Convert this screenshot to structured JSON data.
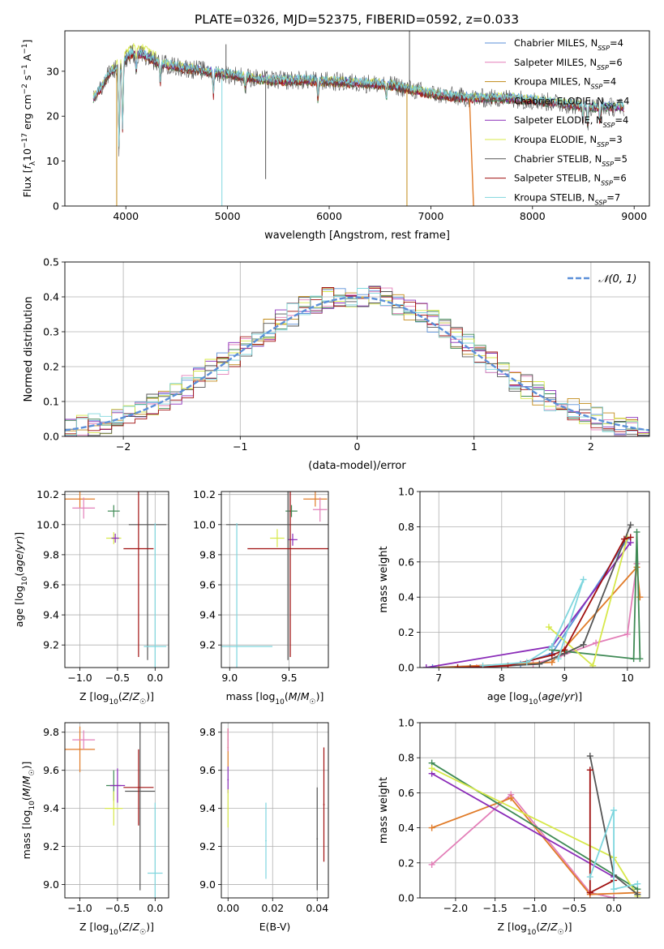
{
  "figure_title": "PLATE=0326, MJD=52375, FIBERID=0592, z=0.033",
  "colors": {
    "chabrier_miles": "#5b8fd8",
    "salpeter_miles": "#e37fb8",
    "kroupa_miles": "#c18a18",
    "chabrier_elodie": "#3f8a55",
    "salpeter_elodie": "#8a2bb8",
    "kroupa_elodie": "#d7e84a",
    "chabrier_stelib": "#555555",
    "salpeter_stelib": "#a01010",
    "kroupa_stelib": "#7fd6de",
    "orange": "#e07b28",
    "grey_lw": "#666666",
    "normal": "#5b8fd8"
  },
  "chart_data": [
    {
      "id": "spectrum",
      "type": "line",
      "xlabel": "wavelength [Angstrom, rest frame]",
      "ylabel": "Flux [f_λ 10^-17 erg cm^-2 s^-1 A^-1]",
      "xlim": [
        3400,
        9150
      ],
      "ylim": [
        0,
        39
      ],
      "xticks": [
        4000,
        5000,
        6000,
        7000,
        8000,
        9000
      ],
      "yticks": [
        0,
        10,
        20,
        30
      ],
      "legend_position": "top-right",
      "legend": [
        {
          "label": "Chabrier MILES, N",
          "sub": "SSP",
          "value": "=4",
          "color_key": "chabrier_miles"
        },
        {
          "label": "Salpeter MILES, N",
          "sub": "SSP",
          "value": "=6",
          "color_key": "salpeter_miles"
        },
        {
          "label": "Kroupa MILES, N",
          "sub": "SSP",
          "value": "=4",
          "color_key": "kroupa_miles"
        },
        {
          "label": "Chabrier ELODIE, N",
          "sub": "SSP",
          "value": "=4",
          "color_key": "chabrier_elodie"
        },
        {
          "label": "Salpeter ELODIE, N",
          "sub": "SSP",
          "value": "=4",
          "color_key": "salpeter_elodie"
        },
        {
          "label": "Kroupa ELODIE, N",
          "sub": "SSP",
          "value": "=3",
          "color_key": "kroupa_elodie"
        },
        {
          "label": "Chabrier STELIB, N",
          "sub": "SSP",
          "value": "=5",
          "color_key": "chabrier_stelib"
        },
        {
          "label": "Salpeter STELIB, N",
          "sub": "SSP",
          "value": "=6",
          "color_key": "salpeter_stelib"
        },
        {
          "label": "Kroupa STELIB, N",
          "sub": "SSP",
          "value": "=7",
          "color_key": "kroupa_stelib"
        }
      ],
      "continuum": {
        "x": [
          3680,
          3750,
          3850,
          3950,
          4050,
          4150,
          4300,
          4500,
          4800,
          5100,
          5400,
          5800,
          6200,
          6600,
          7000,
          7400,
          7800,
          8200,
          8600,
          8900
        ],
        "y": [
          24,
          26,
          30,
          31,
          34,
          34,
          32,
          31,
          30,
          29,
          28,
          28,
          27.5,
          27,
          25,
          24,
          24,
          23,
          22,
          22
        ]
      },
      "absorption_features": [
        {
          "x": 3933,
          "depth": 18
        },
        {
          "x": 3968,
          "depth": 14
        },
        {
          "x": 4102,
          "depth": 4
        },
        {
          "x": 4340,
          "depth": 4
        },
        {
          "x": 4861,
          "depth": 5
        },
        {
          "x": 5175,
          "depth": 3
        },
        {
          "x": 5890,
          "depth": 4
        },
        {
          "x": 6563,
          "depth": 3
        },
        {
          "x": 8498,
          "depth": 3
        },
        {
          "x": 8542,
          "depth": 4
        },
        {
          "x": 8662,
          "depth": 3
        }
      ],
      "spikes": [
        {
          "x": 3910,
          "y": 0,
          "color_key": "kroupa_miles"
        },
        {
          "x": 4945,
          "y": 0,
          "color_key": "kroupa_stelib"
        },
        {
          "x": 5375,
          "y": 6,
          "color_key": "chabrier_stelib"
        },
        {
          "x": 6765,
          "y": 0,
          "color_key": "kroupa_miles"
        },
        {
          "x": 6790,
          "y": 39,
          "color_key": "chabrier_stelib"
        },
        {
          "x": 4985,
          "y": 36,
          "color_key": "chabrier_stelib"
        }
      ],
      "red_cutoff": {
        "x": 7410,
        "color_key": "orange"
      }
    },
    {
      "id": "residuals",
      "type": "histogram",
      "xlabel": "(data-model)/error",
      "ylabel": "Normed distribution",
      "xlim": [
        -2.5,
        2.5
      ],
      "ylim": [
        0,
        0.5
      ],
      "xticks": [
        -2,
        -1,
        0,
        1,
        2
      ],
      "yticks": [
        0.0,
        0.1,
        0.2,
        0.3,
        0.4,
        0.5
      ],
      "bin_width": 0.1,
      "legend_position": "top-right",
      "legend_label": "𝒩(0, 1)",
      "normal": {
        "mu": 0,
        "sigma": 1
      }
    },
    {
      "id": "age_vs_z",
      "type": "errorbar",
      "xlabel": "Z [log10(Z/Z☉)]",
      "ylabel": "age [log10(age/yr)]",
      "xlim": [
        -1.2,
        0.18
      ],
      "ylim": [
        9.05,
        10.22
      ],
      "xticks": [
        -1.0,
        -0.5,
        0.0
      ],
      "yticks": [
        9.2,
        9.4,
        9.6,
        9.8,
        10.0,
        10.2
      ],
      "points": [
        {
          "x": -1.0,
          "y": 10.17,
          "xerr": 0.2,
          "yerr": 0.06,
          "color_key": "orange"
        },
        {
          "x": -0.95,
          "y": 10.11,
          "xerr": 0.15,
          "yerr": 0.07,
          "color_key": "salpeter_miles"
        },
        {
          "x": -0.55,
          "y": 10.09,
          "xerr": 0.08,
          "yerr": 0.04,
          "color_key": "chabrier_elodie"
        },
        {
          "x": -0.55,
          "y": 9.91,
          "xerr": 0.1,
          "yerr": 0.04,
          "color_key": "kroupa_elodie"
        },
        {
          "x": -0.53,
          "y": 9.91,
          "xerr": 0.05,
          "yerr": 0.03,
          "color_key": "salpeter_elodie"
        },
        {
          "x": -0.1,
          "y": 10.0,
          "xerr": 0.25,
          "yerr": 0.9,
          "color_key": "chabrier_stelib"
        },
        {
          "x": -0.22,
          "y": 9.84,
          "xerr": 0.2,
          "yerr": 0.72,
          "color_key": "salpeter_stelib"
        },
        {
          "x": 0.0,
          "y": 9.19,
          "xerr": 0.15,
          "yerr": 0.82,
          "color_key": "kroupa_stelib"
        }
      ]
    },
    {
      "id": "age_vs_mass",
      "type": "errorbar",
      "xlabel": "mass [log10(M/M☉)]",
      "ylabel": "",
      "xlim": [
        8.93,
        9.83
      ],
      "ylim": [
        9.05,
        10.22
      ],
      "xticks": [
        9.0,
        9.5
      ],
      "yticks": [
        9.2,
        9.4,
        9.6,
        9.8,
        10.0,
        10.2
      ],
      "points": [
        {
          "x": 9.72,
          "y": 10.17,
          "xerr": 0.1,
          "yerr": 0.05,
          "color_key": "orange"
        },
        {
          "x": 9.76,
          "y": 10.1,
          "xerr": 0.06,
          "yerr": 0.08,
          "color_key": "salpeter_miles"
        },
        {
          "x": 9.52,
          "y": 10.09,
          "xerr": 0.05,
          "yerr": 0.04,
          "color_key": "chabrier_elodie"
        },
        {
          "x": 9.4,
          "y": 9.91,
          "xerr": 0.06,
          "yerr": 0.06,
          "color_key": "kroupa_elodie"
        },
        {
          "x": 9.53,
          "y": 9.9,
          "xerr": 0.04,
          "yerr": 0.04,
          "color_key": "salpeter_elodie"
        },
        {
          "x": 9.49,
          "y": 10.0,
          "xerr": 0.52,
          "yerr": 0.9,
          "color_key": "chabrier_stelib"
        },
        {
          "x": 9.51,
          "y": 9.84,
          "xerr": 0.36,
          "yerr": 0.72,
          "color_key": "salpeter_stelib"
        },
        {
          "x": 9.06,
          "y": 9.19,
          "xerr": 0.3,
          "yerr": 0.82,
          "color_key": "kroupa_stelib"
        }
      ]
    },
    {
      "id": "weight_vs_age",
      "type": "line",
      "xlabel": "age [log10(age/yr)]",
      "ylabel": "mass weight",
      "xlim": [
        6.7,
        10.35
      ],
      "ylim": [
        0,
        1.0
      ],
      "xticks": [
        7,
        8,
        9,
        10
      ],
      "yticks": [
        0.0,
        0.2,
        0.4,
        0.6,
        0.8,
        1.0
      ],
      "series": [
        {
          "color_key": "chabrier_miles",
          "x": [
            6.9,
            8.3,
            8.8,
            10.0
          ],
          "y": [
            0.0,
            0.02,
            0.08,
            0.73
          ]
        },
        {
          "color_key": "salpeter_miles",
          "x": [
            7.6,
            8.5,
            8.9,
            9.5,
            10.0,
            10.15
          ],
          "y": [
            0.0,
            0.02,
            0.06,
            0.14,
            0.19,
            0.59
          ]
        },
        {
          "color_key": "orange",
          "x": [
            7.0,
            8.8,
            10.15,
            10.2
          ],
          "y": [
            0.0,
            0.03,
            0.57,
            0.4
          ]
        },
        {
          "color_key": "chabrier_elodie",
          "x": [
            8.8,
            10.1,
            10.15,
            10.2
          ],
          "y": [
            0.1,
            0.05,
            0.77,
            0.05
          ]
        },
        {
          "color_key": "salpeter_elodie",
          "x": [
            6.8,
            8.8,
            10.05
          ],
          "y": [
            0.0,
            0.12,
            0.71
          ]
        },
        {
          "color_key": "kroupa_elodie",
          "x": [
            8.75,
            9.45,
            10.0
          ],
          "y": [
            0.23,
            0.01,
            0.74
          ]
        },
        {
          "color_key": "chabrier_stelib",
          "x": [
            7.5,
            8.6,
            9.0,
            9.3,
            10.05
          ],
          "y": [
            0.0,
            0.02,
            0.08,
            0.13,
            0.81
          ]
        },
        {
          "color_key": "salpeter_stelib",
          "x": [
            7.3,
            8.1,
            8.8,
            9.0,
            9.95,
            10.05
          ],
          "y": [
            0.0,
            0.01,
            0.07,
            0.1,
            0.73,
            0.74
          ]
        },
        {
          "color_key": "kroupa_stelib",
          "x": [
            7.7,
            8.4,
            8.8,
            9.3,
            8.9
          ],
          "y": [
            0.01,
            0.03,
            0.12,
            0.5,
            0.05
          ]
        }
      ]
    },
    {
      "id": "mass_vs_z",
      "type": "errorbar",
      "xlabel": "Z [log10(Z/Z☉)]",
      "ylabel": "mass [log10(M/M☉)]",
      "xlim": [
        -1.2,
        0.18
      ],
      "ylim": [
        8.93,
        9.85
      ],
      "xticks": [
        -1.0,
        -0.5,
        0.0
      ],
      "yticks": [
        9.0,
        9.2,
        9.4,
        9.6,
        9.8
      ],
      "points": [
        {
          "x": -1.0,
          "y": 9.71,
          "xerr": 0.2,
          "yerr": 0.12,
          "color_key": "orange"
        },
        {
          "x": -0.95,
          "y": 9.76,
          "xerr": 0.15,
          "yerr": 0.05,
          "color_key": "salpeter_miles"
        },
        {
          "x": -0.55,
          "y": 9.52,
          "xerr": 0.1,
          "yerr": 0.08,
          "color_key": "chabrier_elodie"
        },
        {
          "x": -0.55,
          "y": 9.4,
          "xerr": 0.12,
          "yerr": 0.09,
          "color_key": "kroupa_elodie"
        },
        {
          "x": -0.5,
          "y": 9.52,
          "xerr": 0.1,
          "yerr": 0.09,
          "color_key": "salpeter_elodie"
        },
        {
          "x": -0.2,
          "y": 9.49,
          "xerr": 0.2,
          "yerr": 0.52,
          "color_key": "chabrier_stelib"
        },
        {
          "x": -0.22,
          "y": 9.51,
          "xerr": 0.2,
          "yerr": 0.2,
          "color_key": "salpeter_stelib"
        },
        {
          "x": 0.0,
          "y": 9.06,
          "xerr": 0.1,
          "yerr": 0.37,
          "color_key": "kroupa_stelib"
        }
      ]
    },
    {
      "id": "mass_vs_ebv",
      "type": "errorbar",
      "xlabel": "E(B-V)",
      "ylabel": "",
      "xlim": [
        -0.003,
        0.045
      ],
      "ylim": [
        8.93,
        9.85
      ],
      "xticks": [
        0.0,
        0.02,
        0.04
      ],
      "yticks": [
        9.0,
        9.2,
        9.4,
        9.6,
        9.8
      ],
      "points": [
        {
          "x": 0.0,
          "y": 9.72,
          "xerr": 0.0003,
          "yerr": 0.1,
          "color_key": "orange"
        },
        {
          "x": 0.0,
          "y": 9.76,
          "xerr": 0.0003,
          "yerr": 0.06,
          "color_key": "salpeter_miles"
        },
        {
          "x": 0.0,
          "y": 9.55,
          "xerr": 0.0003,
          "yerr": 0.07,
          "color_key": "salpeter_elodie"
        },
        {
          "x": 0.0,
          "y": 9.4,
          "xerr": 0.0003,
          "yerr": 0.1,
          "color_key": "kroupa_elodie"
        },
        {
          "x": 0.017,
          "y": 9.23,
          "xerr": 0.0003,
          "yerr": 0.2,
          "color_key": "kroupa_stelib"
        },
        {
          "x": 0.04,
          "y": 9.24,
          "xerr": 0.0003,
          "yerr": 0.27,
          "color_key": "chabrier_stelib"
        },
        {
          "x": 0.043,
          "y": 9.42,
          "xerr": 0.0003,
          "yerr": 0.3,
          "color_key": "salpeter_stelib"
        }
      ]
    },
    {
      "id": "weight_vs_z",
      "type": "line",
      "xlabel": "Z [log10(Z/Z☉)]",
      "ylabel": "mass weight",
      "xlim": [
        -2.45,
        0.45
      ],
      "ylim": [
        0,
        1.0
      ],
      "xticks": [
        -2.0,
        -1.5,
        -1.0,
        -0.5,
        0.0
      ],
      "yticks": [
        0.0,
        0.2,
        0.4,
        0.6,
        0.8,
        1.0
      ],
      "series": [
        {
          "color_key": "chabrier_miles",
          "x": [
            -0.3,
            0.0
          ],
          "y": [
            0.03,
            0.0
          ]
        },
        {
          "color_key": "salpeter_miles",
          "x": [
            -2.3,
            -1.3,
            -0.3,
            0.0
          ],
          "y": [
            0.19,
            0.59,
            0.03,
            0.0
          ]
        },
        {
          "color_key": "orange",
          "x": [
            -2.3,
            -1.3,
            -0.3,
            0.3
          ],
          "y": [
            0.4,
            0.57,
            0.02,
            0.03
          ]
        },
        {
          "color_key": "chabrier_elodie",
          "x": [
            -2.3,
            0.3
          ],
          "y": [
            0.77,
            0.05
          ]
        },
        {
          "color_key": "salpeter_elodie",
          "x": [
            -2.3,
            0.0
          ],
          "y": [
            0.71,
            0.12
          ]
        },
        {
          "color_key": "kroupa_elodie",
          "x": [
            -2.3,
            0.0,
            0.3
          ],
          "y": [
            0.74,
            0.23,
            0.01
          ]
        },
        {
          "color_key": "chabrier_stelib",
          "x": [
            -0.3,
            0.0,
            0.3
          ],
          "y": [
            0.81,
            0.13,
            0.02
          ]
        },
        {
          "color_key": "salpeter_stelib",
          "x": [
            -0.3,
            -0.3,
            0.0
          ],
          "y": [
            0.73,
            0.03,
            0.1
          ]
        },
        {
          "color_key": "kroupa_stelib",
          "x": [
            -0.3,
            0.0,
            0.0,
            0.3
          ],
          "y": [
            0.12,
            0.5,
            0.05,
            0.08
          ]
        }
      ]
    }
  ]
}
